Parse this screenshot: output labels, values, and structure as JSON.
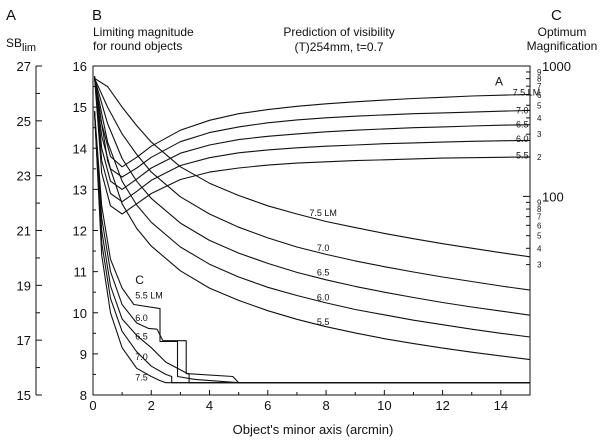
{
  "chart_data": {
    "type": "line",
    "title": "Prediction of visibility",
    "subtitle": "(T)254mm, t=0.7",
    "panel_letters": {
      "left": "A",
      "middle": "B",
      "right": "C"
    },
    "left_axis_title": "SB",
    "left_axis_title_sub": "lim",
    "middle_axis_title_line1": "Limiting magnitude",
    "middle_axis_title_line2": "for round objects",
    "right_axis_title_line1": "Optimum",
    "right_axis_title_line2": "Magnification",
    "xlabel": "Object's minor axis (arcmin)",
    "xlim": [
      0,
      15
    ],
    "ylim": [
      8,
      16
    ],
    "sb_lim": [
      15,
      27
    ],
    "mag_lim_log": [
      3,
      1000
    ],
    "x_ticks": [
      "0",
      "2",
      "4",
      "6",
      "8",
      "10",
      "12",
      "14"
    ],
    "y_ticks": [
      "8",
      "9",
      "10",
      "11",
      "12",
      "13",
      "14",
      "15",
      "16"
    ],
    "sb_ticks": [
      "15",
      "17",
      "19",
      "21",
      "23",
      "25",
      "27"
    ],
    "mag_major_ticks": [
      "100",
      "1000"
    ],
    "mag_minor_labels_upper": [
      "9",
      "8",
      "7",
      "6",
      "5",
      "4",
      "3",
      "2"
    ],
    "mag_minor_labels_lower": [
      "9",
      "8",
      "7",
      "6",
      "5",
      "4",
      "3"
    ],
    "curve_groups": [
      {
        "letter": "A",
        "quantity": "limiting magnitude",
        "series": [
          {
            "name": "7.5 LM",
            "x": [
              0.05,
              0.3,
              0.6,
              1,
              1.5,
              2,
              3,
              4,
              5,
              6,
              7,
              8,
              9,
              10,
              11,
              12,
              13,
              14,
              15
            ],
            "y": [
              15.75,
              14.6,
              13.8,
              13.55,
              13.78,
              14.05,
              14.44,
              14.68,
              14.84,
              14.94,
              15.02,
              15.08,
              15.13,
              15.17,
              15.21,
              15.24,
              15.27,
              15.29,
              15.31
            ]
          },
          {
            "name": "7.0",
            "x": [
              0.05,
              0.3,
              0.6,
              1,
              1.5,
              2,
              3,
              4,
              5,
              6,
              7,
              8,
              9,
              10,
              11,
              12,
              13,
              14,
              15
            ],
            "y": [
              15.75,
              14.3,
              13.5,
              13.3,
              13.52,
              13.78,
              14.16,
              14.38,
              14.52,
              14.62,
              14.69,
              14.74,
              14.78,
              14.81,
              14.84,
              14.86,
              14.88,
              14.9,
              14.92
            ]
          },
          {
            "name": "6.5",
            "x": [
              0.05,
              0.3,
              0.6,
              1,
              1.5,
              2,
              3,
              4,
              5,
              6,
              7,
              8,
              9,
              10,
              11,
              12,
              13,
              14,
              15
            ],
            "y": [
              15.75,
              14.0,
              13.2,
              13.0,
              13.25,
              13.52,
              13.88,
              14.08,
              14.21,
              14.29,
              14.35,
              14.4,
              14.44,
              14.47,
              14.5,
              14.52,
              14.54,
              14.56,
              14.57
            ]
          },
          {
            "name": "6.0",
            "x": [
              0.05,
              0.3,
              0.6,
              1,
              1.5,
              2,
              3,
              4,
              5,
              6,
              7,
              8,
              9,
              10,
              11,
              12,
              13,
              14,
              15
            ],
            "y": [
              15.75,
              13.7,
              12.9,
              12.7,
              12.95,
              13.22,
              13.58,
              13.77,
              13.89,
              13.96,
              14.01,
              14.05,
              14.08,
              14.11,
              14.13,
              14.15,
              14.17,
              14.18,
              14.19
            ]
          },
          {
            "name": "5.5",
            "x": [
              0.05,
              0.3,
              0.6,
              1,
              1.5,
              2,
              3,
              4,
              5,
              6,
              7,
              8,
              9,
              10,
              11,
              12,
              13,
              14,
              15
            ],
            "y": [
              15.75,
              13.4,
              12.6,
              12.4,
              12.65,
              12.9,
              13.24,
              13.42,
              13.52,
              13.59,
              13.64,
              13.67,
              13.7,
              13.72,
              13.74,
              13.76,
              13.77,
              13.78,
              13.79
            ]
          }
        ]
      },
      {
        "letter": "",
        "quantity": "optimum magnification",
        "series": [
          {
            "name": "7.5 LM",
            "x": [
              0.05,
              0.5,
              1,
              1.5,
              2,
              3,
              4,
              5,
              6,
              7,
              8,
              9,
              10,
              11,
              12,
              13,
              14,
              15
            ],
            "y": [
              15.7,
              15.5,
              15.0,
              14.55,
              14.15,
              13.55,
              13.15,
              12.85,
              12.6,
              12.4,
              12.22,
              12.07,
              11.93,
              11.8,
              11.68,
              11.57,
              11.46,
              11.36
            ]
          },
          {
            "name": "7.0",
            "x": [
              0.05,
              0.5,
              1,
              1.5,
              2,
              3,
              4,
              5,
              6,
              7,
              8,
              9,
              10,
              11,
              12,
              13,
              14,
              15
            ],
            "y": [
              15.7,
              15.0,
              14.35,
              13.85,
              13.42,
              12.82,
              12.4,
              12.08,
              11.82,
              11.6,
              11.42,
              11.26,
              11.12,
              10.99,
              10.87,
              10.76,
              10.65,
              10.55
            ]
          },
          {
            "name": "6.5",
            "x": [
              0.05,
              0.5,
              1,
              1.5,
              2,
              3,
              4,
              5,
              6,
              7,
              8,
              9,
              10,
              11,
              12,
              13,
              14,
              15
            ],
            "y": [
              15.7,
              14.6,
              13.75,
              13.2,
              12.78,
              12.18,
              11.76,
              11.45,
              11.2,
              10.98,
              10.8,
              10.64,
              10.5,
              10.37,
              10.25,
              10.14,
              10.04,
              9.94
            ]
          },
          {
            "name": "6.0",
            "x": [
              0.05,
              0.5,
              1,
              1.5,
              2,
              3,
              4,
              5,
              6,
              7,
              8,
              9,
              10,
              11,
              12,
              13,
              14,
              15
            ],
            "y": [
              15.7,
              14.15,
              13.2,
              12.62,
              12.2,
              11.6,
              11.18,
              10.87,
              10.62,
              10.42,
              10.24,
              10.08,
              9.95,
              9.82,
              9.71,
              9.6,
              9.5,
              9.41
            ]
          },
          {
            "name": "5.5",
            "x": [
              0.05,
              0.5,
              1,
              1.5,
              2,
              3,
              4,
              5,
              6,
              7,
              8,
              9,
              10,
              11,
              12,
              13,
              14,
              15
            ],
            "y": [
              15.7,
              13.7,
              12.65,
              12.05,
              11.62,
              11.02,
              10.6,
              10.3,
              10.05,
              9.84,
              9.66,
              9.51,
              9.37,
              9.25,
              9.14,
              9.04,
              8.95,
              8.86
            ]
          }
        ]
      },
      {
        "letter": "C",
        "quantity": "surface brightness limit",
        "series": [
          {
            "name": "5.5 LM",
            "x": [
              0.05,
              0.3,
              0.6,
              1,
              1.4,
              2.3,
              2.3,
              2.9,
              2.9,
              3.5,
              5,
              15
            ],
            "y": [
              14.9,
              12.6,
              11.3,
              10.6,
              10.2,
              10.1,
              9.3,
              9.3,
              8.45,
              8.38,
              8.3,
              8.3
            ]
          },
          {
            "name": "6.0",
            "x": [
              0.05,
              0.3,
              0.6,
              1,
              1.5,
              1.9,
              2.2,
              2.4,
              2.4,
              3.2,
              3.2,
              4.8,
              5,
              15
            ],
            "y": [
              14.9,
              12.3,
              11.0,
              10.2,
              9.75,
              9.62,
              9.6,
              9.32,
              9.32,
              9.32,
              8.52,
              8.45,
              8.3,
              8.3
            ]
          },
          {
            "name": "6.5",
            "x": [
              0.05,
              0.3,
              0.6,
              1,
              1.5,
              2,
              2.5,
              3.3,
              3.3,
              15
            ],
            "y": [
              14.9,
              12.0,
              10.65,
              9.85,
              9.45,
              9.15,
              8.8,
              8.5,
              8.3,
              8.3
            ]
          },
          {
            "name": "7.0",
            "x": [
              0.05,
              0.3,
              0.6,
              1,
              1.5,
              2,
              2.5,
              2.7,
              2.7,
              15
            ],
            "y": [
              14.9,
              11.7,
              10.35,
              9.55,
              9.05,
              8.7,
              8.5,
              8.45,
              8.3,
              8.3
            ]
          },
          {
            "name": "7.5",
            "x": [
              0.05,
              0.3,
              0.6,
              1,
              1.5,
              2,
              2.3,
              2.5,
              15
            ],
            "y": [
              14.9,
              11.4,
              10.0,
              9.15,
              8.65,
              8.45,
              8.35,
              8.3,
              8.3
            ]
          }
        ]
      }
    ],
    "grid": false,
    "legend": "none"
  }
}
